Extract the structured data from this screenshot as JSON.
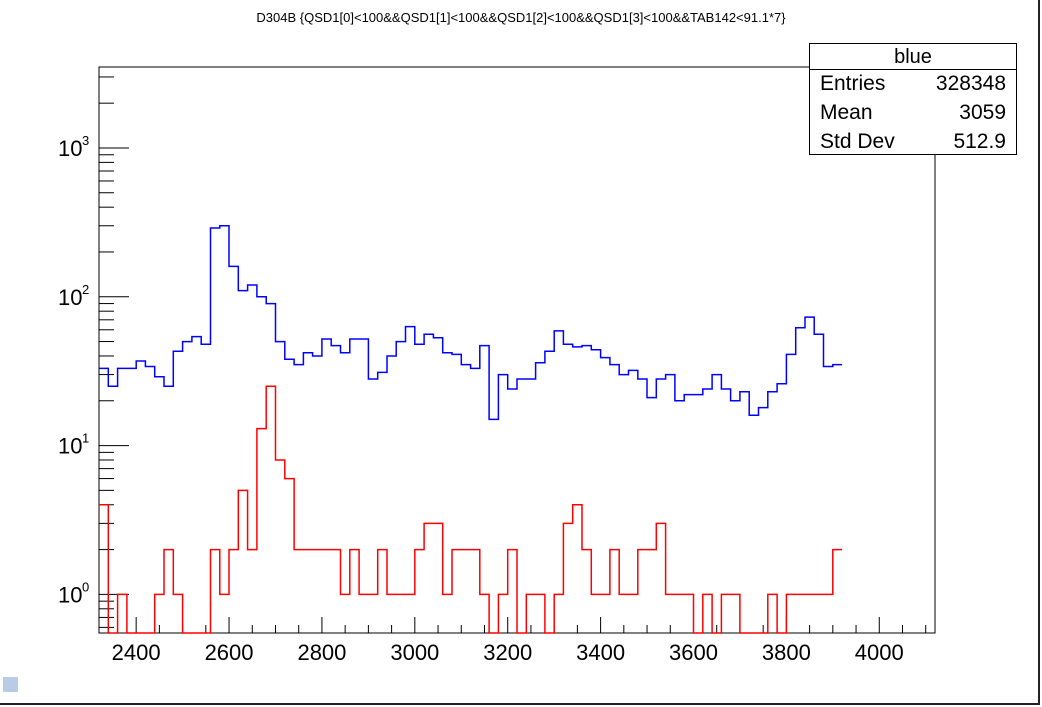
{
  "title": "D304B {QSD1[0]<100&&QSD1[1]<100&&QSD1[2]<100&&QSD1[3]<100&&TAB142<91.1*7}",
  "stats": {
    "name": "blue",
    "rows": [
      {
        "label": "Entries",
        "value": "328348"
      },
      {
        "label": "Mean",
        "value": "3059"
      },
      {
        "label": "Std Dev",
        "value": "512.9"
      }
    ]
  },
  "colors": {
    "blue_series": "#0000ff",
    "red_series": "#ff0000",
    "axis": "#000000",
    "corner": "#b9cce6"
  },
  "chart_data": {
    "type": "line",
    "step": true,
    "ylog": true,
    "xlim": [
      2320,
      4120
    ],
    "ylim": [
      0.55,
      3500
    ],
    "bin_width": 20,
    "x_ticks": [
      2400,
      2600,
      2800,
      3000,
      3200,
      3400,
      3600,
      3800,
      4000
    ],
    "y_ticks": [
      {
        "value": 1,
        "base": "10",
        "exp": "0"
      },
      {
        "value": 10,
        "base": "10",
        "exp": "1"
      },
      {
        "value": 100,
        "base": "10",
        "exp": "2"
      },
      {
        "value": 1000,
        "base": "10",
        "exp": "3"
      }
    ],
    "series": [
      {
        "color": "blue",
        "x_start": 2320,
        "values": [
          33,
          25,
          33,
          33,
          37,
          34,
          29,
          25,
          43,
          50,
          54,
          48,
          290,
          300,
          160,
          110,
          120,
          100,
          90,
          50,
          38,
          35,
          42,
          40,
          52,
          47,
          42,
          52,
          52,
          28,
          31,
          40,
          50,
          63,
          48,
          56,
          53,
          42,
          41,
          35,
          33,
          47,
          15,
          30,
          24,
          28,
          28,
          36,
          43,
          59,
          48,
          46,
          47,
          44,
          39,
          35,
          30,
          32,
          28,
          21,
          28,
          30,
          20,
          22,
          22,
          24,
          30,
          24,
          20,
          23,
          16,
          18,
          23,
          26,
          41,
          62,
          73,
          56,
          34,
          35
        ]
      },
      {
        "color": "red",
        "x_start": 2320,
        "values": [
          4,
          0,
          1,
          0,
          0,
          0,
          1,
          2,
          1,
          0,
          0,
          0,
          2,
          1,
          2,
          5,
          2,
          13,
          25,
          8,
          6,
          2,
          2,
          2,
          2,
          2,
          1,
          2,
          1,
          1,
          2,
          1,
          1,
          1,
          2,
          3,
          3,
          1,
          2,
          2,
          2,
          1,
          0,
          1,
          2,
          0,
          1,
          1,
          0,
          1,
          3,
          4,
          2,
          1,
          1,
          2,
          1,
          1,
          2,
          2,
          3,
          1,
          1,
          1,
          0,
          1,
          0,
          1,
          1,
          0,
          0,
          0,
          1,
          0,
          1,
          1,
          1,
          1,
          1,
          2
        ]
      }
    ]
  }
}
